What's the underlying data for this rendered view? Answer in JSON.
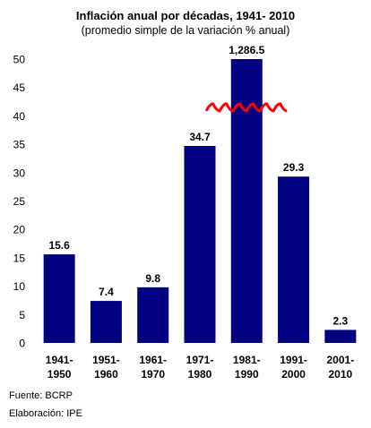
{
  "chart_data": {
    "type": "bar",
    "title": "Inflación anual por décadas, 1941- 2010",
    "subtitle": "(promedio simple de la variación % anual)",
    "categories": [
      [
        "1941-",
        "1950"
      ],
      [
        "1951-",
        "1960"
      ],
      [
        "1961-",
        "1970"
      ],
      [
        "1971-",
        "1980"
      ],
      [
        "1981-",
        "1990"
      ],
      [
        "1991-",
        "2000"
      ],
      [
        "2001-",
        "2010"
      ]
    ],
    "values": [
      15.6,
      7.4,
      9.8,
      34.7,
      1286.5,
      29.3,
      2.3
    ],
    "value_labels": [
      "15.6",
      "7.4",
      "9.8",
      "34.7",
      "1,286.5",
      "29.3",
      "2.3"
    ],
    "ylim": [
      0,
      50
    ],
    "yticks": [
      0,
      5,
      10,
      15,
      20,
      25,
      30,
      35,
      40,
      45,
      50
    ],
    "axis_break": true,
    "grid": false,
    "xlabel": "",
    "ylabel": "",
    "colors": {
      "bar": "#000080",
      "break": "#ff0000"
    }
  },
  "footer": {
    "source": "Fuente: BCRP",
    "credit": "Elaboración: IPE"
  }
}
